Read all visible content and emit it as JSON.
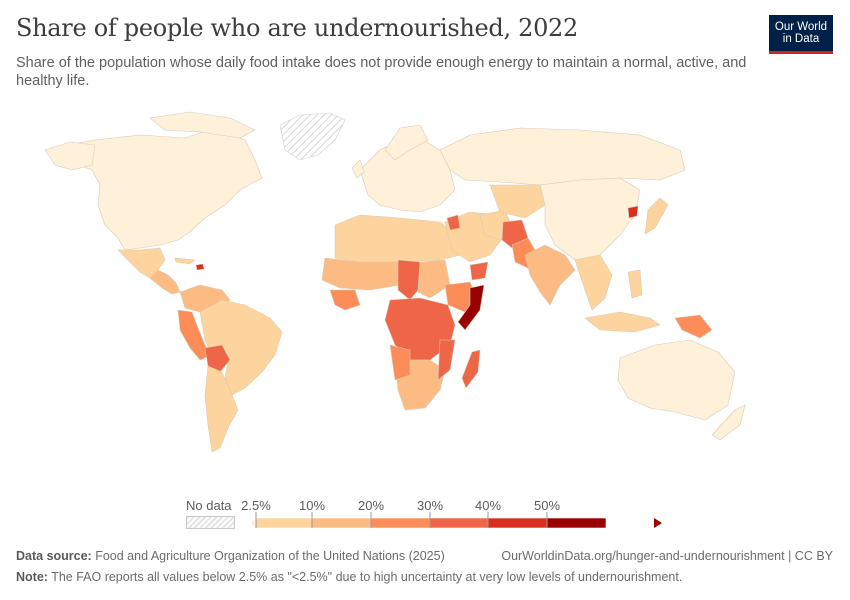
{
  "header": {
    "title": "Share of people who are undernourished, 2022",
    "subtitle": "Share of the population whose daily food intake does not provide enough energy to maintain a normal, active, and healthy life."
  },
  "logo": {
    "line1": "Our World",
    "line2": "in Data",
    "bg": "#002147",
    "accent": "#ce261e"
  },
  "legend": {
    "no_data_label": "No data",
    "ticks": [
      "2.5%",
      "10%",
      "20%",
      "30%",
      "40%",
      "50%"
    ],
    "colors": [
      "#fef0d9",
      "#fdd49e",
      "#fdbb84",
      "#fc8d59",
      "#ef6548",
      "#d7301f",
      "#990000"
    ]
  },
  "map_data": {
    "year": 2022,
    "unit": "%",
    "regions": [
      {
        "name": "North America",
        "band": 0
      },
      {
        "name": "Greenland",
        "band": "no-data"
      },
      {
        "name": "Mexico",
        "band": 1
      },
      {
        "name": "Central America",
        "band": 2
      },
      {
        "name": "Haiti",
        "band": 5
      },
      {
        "name": "Venezuela",
        "band": 2
      },
      {
        "name": "Colombia",
        "band": 1
      },
      {
        "name": "Ecuador / Peru",
        "band": 3
      },
      {
        "name": "Brazil",
        "band": 1
      },
      {
        "name": "Bolivia",
        "band": 4
      },
      {
        "name": "Argentina / Chile",
        "band": 1
      },
      {
        "name": "Europe",
        "band": 0
      },
      {
        "name": "Russia",
        "band": 0
      },
      {
        "name": "North Africa",
        "band": 1
      },
      {
        "name": "Sahel",
        "band": 2
      },
      {
        "name": "Chad",
        "band": 4
      },
      {
        "name": "West Africa coast",
        "band": 3
      },
      {
        "name": "Central Africa / DR Congo",
        "band": 4
      },
      {
        "name": "Ethiopia",
        "band": 3
      },
      {
        "name": "Somalia",
        "band": 6
      },
      {
        "name": "Madagascar",
        "band": 4
      },
      {
        "name": "Southern Africa",
        "band": 2
      },
      {
        "name": "Yemen",
        "band": 4
      },
      {
        "name": "Syria",
        "band": 4
      },
      {
        "name": "Afghanistan",
        "band": 4
      },
      {
        "name": "Pakistan / India",
        "band": 2
      },
      {
        "name": "China",
        "band": 0
      },
      {
        "name": "North Korea",
        "band": 5
      },
      {
        "name": "Southeast Asia",
        "band": 1
      },
      {
        "name": "Papua New Guinea",
        "band": 3
      },
      {
        "name": "Australia",
        "band": 0
      }
    ]
  },
  "footer": {
    "source_label": "Data source:",
    "source_text": "Food and Agriculture Organization of the United Nations (2025)",
    "url_text": "OurWorldinData.org/hunger-and-undernourishment | CC BY",
    "note_label": "Note:",
    "note_text": "The FAO reports all values below 2.5% as \"<2.5%\" due to high uncertainty at very low levels of undernourishment."
  }
}
